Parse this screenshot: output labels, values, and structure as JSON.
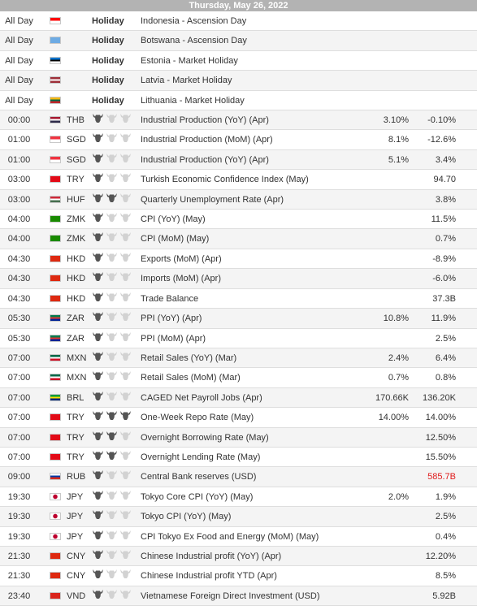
{
  "header": {
    "date": "Thursday, May 26, 2022"
  },
  "colors": {
    "bull_dark": "#555555",
    "bull_light": "#d2d2d2",
    "negative": "#e01b1b"
  },
  "rows": [
    {
      "time": "All Day",
      "flag": [
        "#ff0000",
        "#ffffff",
        "h"
      ],
      "cur": "",
      "event": "Indonesia - Ascension Day",
      "holiday": "Holiday"
    },
    {
      "time": "All Day",
      "flag": [
        "#6dabe4",
        "#6dabe4",
        "s"
      ],
      "cur": "",
      "event": "Botswana - Ascension Day",
      "holiday": "Holiday"
    },
    {
      "time": "All Day",
      "flag": [
        "#0072ce",
        "#000000",
        "#ffffff"
      ],
      "cur": "",
      "event": "Estonia - Market Holiday",
      "holiday": "Holiday"
    },
    {
      "time": "All Day",
      "flag": [
        "#9e3039",
        "#ffffff",
        "#9e3039"
      ],
      "cur": "",
      "event": "Latvia - Market Holiday",
      "holiday": "Holiday"
    },
    {
      "time": "All Day",
      "flag": [
        "#fdb913",
        "#006a44",
        "#c1272d"
      ],
      "cur": "",
      "event": "Lithuania - Market Holiday",
      "holiday": "Holiday"
    },
    {
      "time": "00:00",
      "flag": [
        "#a51931",
        "#ffffff",
        "#2d2a4a"
      ],
      "cur": "THB",
      "imp": 1,
      "event": "Industrial Production (YoY) (Apr)",
      "actual": "3.10%",
      "prev": "-0.10%"
    },
    {
      "time": "01:00",
      "flag": [
        "#ef3340",
        "#ffffff",
        "h"
      ],
      "cur": "SGD",
      "imp": 1,
      "event": "Industrial Production (MoM) (Apr)",
      "actual": "8.1%",
      "prev": "-12.6%"
    },
    {
      "time": "01:00",
      "flag": [
        "#ef3340",
        "#ffffff",
        "h"
      ],
      "cur": "SGD",
      "imp": 1,
      "event": "Industrial Production (YoY) (Apr)",
      "actual": "5.1%",
      "prev": "3.4%"
    },
    {
      "time": "03:00",
      "flag": [
        "#e30a17",
        "#e30a17",
        "s"
      ],
      "cur": "TRY",
      "imp": 1,
      "event": "Turkish Economic Confidence Index (May)",
      "actual": "",
      "prev": "94.70"
    },
    {
      "time": "03:00",
      "flag": [
        "#ce2939",
        "#ffffff",
        "#477050"
      ],
      "cur": "HUF",
      "imp": 2,
      "event": "Quarterly Unemployment Rate (Apr)",
      "actual": "",
      "prev": "3.8%"
    },
    {
      "time": "04:00",
      "flag": [
        "#198a00",
        "#198a00",
        "s"
      ],
      "cur": "ZMK",
      "imp": 1,
      "event": "CPI (YoY) (May)",
      "actual": "",
      "prev": "11.5%"
    },
    {
      "time": "04:00",
      "flag": [
        "#198a00",
        "#198a00",
        "s"
      ],
      "cur": "ZMK",
      "imp": 1,
      "event": "CPI (MoM) (May)",
      "actual": "",
      "prev": "0.7%"
    },
    {
      "time": "04:30",
      "flag": [
        "#de2910",
        "#de2910",
        "s"
      ],
      "cur": "HKD",
      "imp": 1,
      "event": "Exports (MoM) (Apr)",
      "actual": "",
      "prev": "-8.9%"
    },
    {
      "time": "04:30",
      "flag": [
        "#de2910",
        "#de2910",
        "s"
      ],
      "cur": "HKD",
      "imp": 1,
      "event": "Imports (MoM) (Apr)",
      "actual": "",
      "prev": "-6.0%"
    },
    {
      "time": "04:30",
      "flag": [
        "#de2910",
        "#de2910",
        "s"
      ],
      "cur": "HKD",
      "imp": 1,
      "event": "Trade Balance",
      "actual": "",
      "prev": "37.3B"
    },
    {
      "time": "05:30",
      "flag": [
        "#007a4d",
        "#de3831",
        "#002395"
      ],
      "cur": "ZAR",
      "imp": 1,
      "event": "PPI (YoY) (Apr)",
      "actual": "10.8%",
      "prev": "11.9%"
    },
    {
      "time": "05:30",
      "flag": [
        "#007a4d",
        "#de3831",
        "#002395"
      ],
      "cur": "ZAR",
      "imp": 1,
      "event": "PPI (MoM) (Apr)",
      "actual": "",
      "prev": "2.5%"
    },
    {
      "time": "07:00",
      "flag": [
        "#006847",
        "#ffffff",
        "#ce1126"
      ],
      "cur": "MXN",
      "imp": 1,
      "event": "Retail Sales (YoY) (Mar)",
      "actual": "2.4%",
      "prev": "6.4%"
    },
    {
      "time": "07:00",
      "flag": [
        "#006847",
        "#ffffff",
        "#ce1126"
      ],
      "cur": "MXN",
      "imp": 1,
      "event": "Retail Sales (MoM) (Mar)",
      "actual": "0.7%",
      "prev": "0.8%"
    },
    {
      "time": "07:00",
      "flag": [
        "#009c3b",
        "#ffdf00",
        "#002776"
      ],
      "cur": "BRL",
      "imp": 1,
      "event": "CAGED Net Payroll Jobs (Apr)",
      "actual": "170.66K",
      "prev": "136.20K"
    },
    {
      "time": "07:00",
      "flag": [
        "#e30a17",
        "#e30a17",
        "s"
      ],
      "cur": "TRY",
      "imp": 3,
      "event": "One-Week Repo Rate (May)",
      "actual": "14.00%",
      "prev": "14.00%"
    },
    {
      "time": "07:00",
      "flag": [
        "#e30a17",
        "#e30a17",
        "s"
      ],
      "cur": "TRY",
      "imp": 2,
      "event": "Overnight Borrowing Rate (May)",
      "actual": "",
      "prev": "12.50%"
    },
    {
      "time": "07:00",
      "flag": [
        "#e30a17",
        "#e30a17",
        "s"
      ],
      "cur": "TRY",
      "imp": 2,
      "event": "Overnight Lending Rate (May)",
      "actual": "",
      "prev": "15.50%"
    },
    {
      "time": "09:00",
      "flag": [
        "#ffffff",
        "#0039a6",
        "#d52b1e"
      ],
      "cur": "RUB",
      "imp": 1,
      "event": "Central Bank reserves (USD)",
      "actual": "",
      "prev": "585.7B",
      "prev_red": true
    },
    {
      "time": "19:30",
      "flag": [
        "#ffffff",
        "#ffffff",
        "j"
      ],
      "cur": "JPY",
      "imp": 1,
      "event": "Tokyo Core CPI (YoY) (May)",
      "actual": "2.0%",
      "prev": "1.9%"
    },
    {
      "time": "19:30",
      "flag": [
        "#ffffff",
        "#ffffff",
        "j"
      ],
      "cur": "JPY",
      "imp": 1,
      "event": "Tokyo CPI (YoY) (May)",
      "actual": "",
      "prev": "2.5%"
    },
    {
      "time": "19:30",
      "flag": [
        "#ffffff",
        "#ffffff",
        "j"
      ],
      "cur": "JPY",
      "imp": 1,
      "event": "CPI Tokyo Ex Food and Energy (MoM) (May)",
      "actual": "",
      "prev": "0.4%"
    },
    {
      "time": "21:30",
      "flag": [
        "#de2910",
        "#de2910",
        "s"
      ],
      "cur": "CNY",
      "imp": 1,
      "event": "Chinese Industrial profit (YoY) (Apr)",
      "actual": "",
      "prev": "12.20%"
    },
    {
      "time": "21:30",
      "flag": [
        "#de2910",
        "#de2910",
        "s"
      ],
      "cur": "CNY",
      "imp": 1,
      "event": "Chinese Industrial profit YTD (Apr)",
      "actual": "",
      "prev": "8.5%"
    },
    {
      "time": "23:40",
      "flag": [
        "#da251d",
        "#da251d",
        "s"
      ],
      "cur": "VND",
      "imp": 1,
      "event": "Vietnamese Foreign Direct Investment (USD)",
      "actual": "",
      "prev": "5.92B"
    }
  ]
}
